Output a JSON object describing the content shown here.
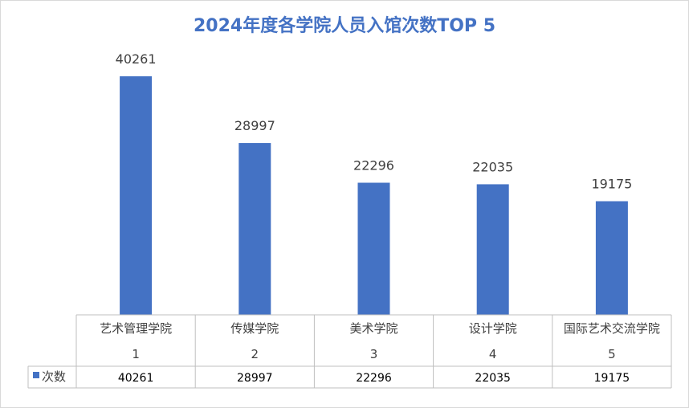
{
  "chart_data": {
    "type": "bar",
    "title": "2024年度各学院人员入馆次数TOP 5",
    "categories": [
      "艺术管理学院",
      "传媒学院",
      "美术学院",
      "设计学院",
      "国际艺术交流学院"
    ],
    "ranks": [
      "1",
      "2",
      "3",
      "4",
      "5"
    ],
    "series": [
      {
        "name": "次数",
        "values": [
          40261,
          28997,
          22296,
          22035,
          19175
        ],
        "color": "#4472c4"
      }
    ],
    "value_labels": [
      "40261",
      "28997",
      "22296",
      "22035",
      "19175"
    ],
    "ylim": [
      0,
      45000
    ],
    "grid": false,
    "legend": "data-table"
  }
}
